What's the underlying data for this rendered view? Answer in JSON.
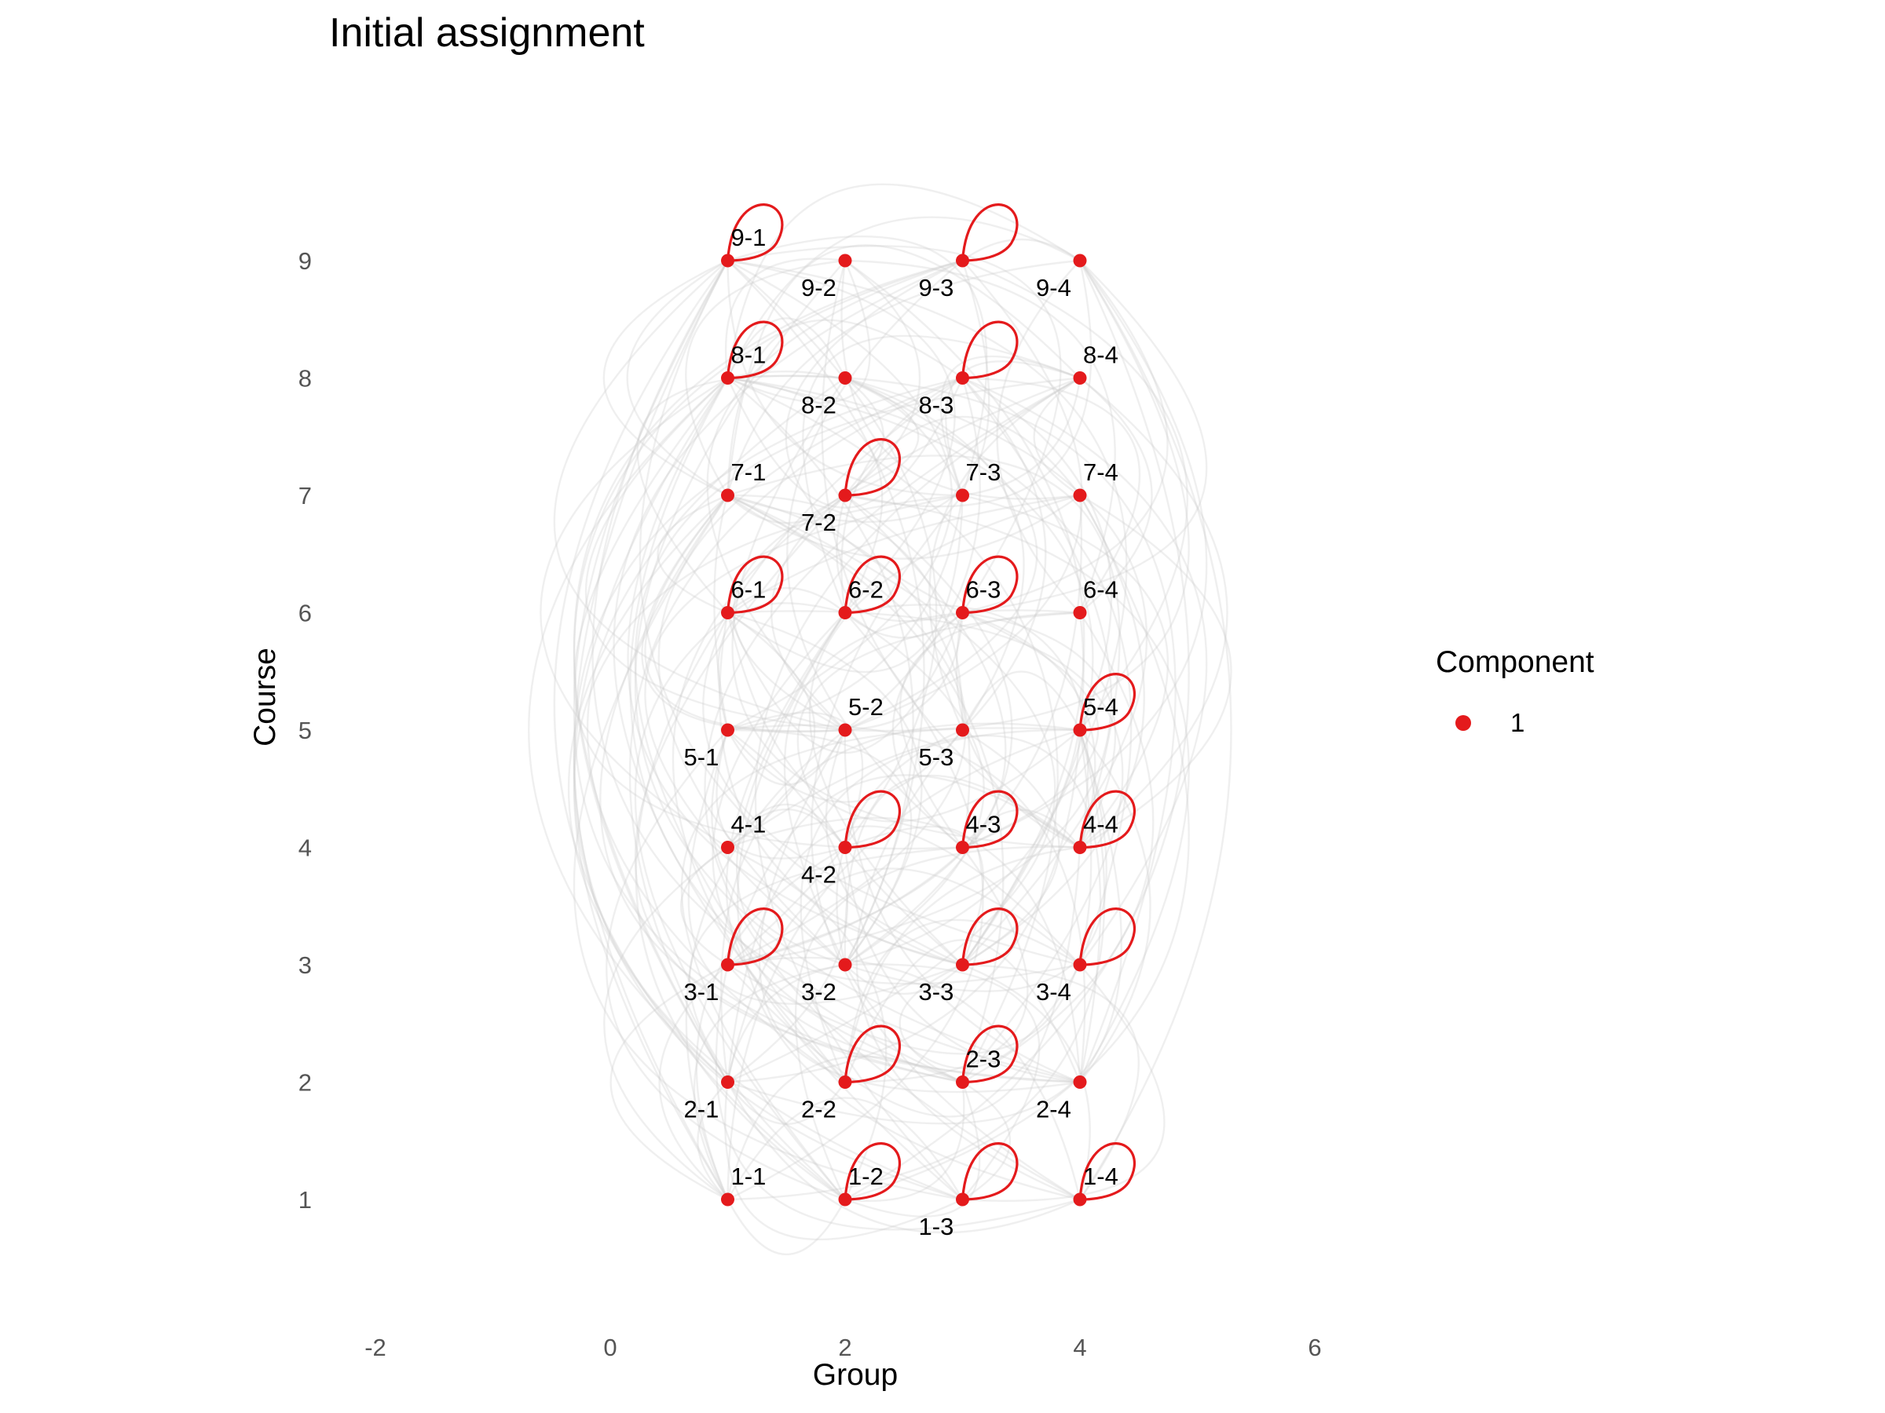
{
  "chart_data": {
    "type": "network",
    "title": "Initial assignment",
    "xlabel": "Group",
    "ylabel": "Course",
    "xlim": [
      -2,
      6
    ],
    "ylim": [
      1,
      9
    ],
    "x_ticks": [
      -2,
      0,
      2,
      4,
      6
    ],
    "y_ticks": [
      1,
      2,
      3,
      4,
      5,
      6,
      7,
      8,
      9
    ],
    "grid": false,
    "legend": {
      "title": "Component",
      "position": "right",
      "entries": [
        {
          "label": "1",
          "color": "#e41a1c"
        }
      ]
    },
    "node_color": "#e41a1c",
    "edge_color": "#cccccc",
    "nodes": [
      {
        "label": "1-1",
        "x": 1,
        "y": 1,
        "label_pos": "above",
        "self_loop": false
      },
      {
        "label": "1-2",
        "x": 2,
        "y": 1,
        "label_pos": "above",
        "self_loop": true
      },
      {
        "label": "1-3",
        "x": 3,
        "y": 1,
        "label_pos": "below",
        "self_loop": true
      },
      {
        "label": "1-4",
        "x": 4,
        "y": 1,
        "label_pos": "above",
        "self_loop": true
      },
      {
        "label": "2-1",
        "x": 1,
        "y": 2,
        "label_pos": "below",
        "self_loop": false
      },
      {
        "label": "2-2",
        "x": 2,
        "y": 2,
        "label_pos": "below",
        "self_loop": true
      },
      {
        "label": "2-3",
        "x": 3,
        "y": 2,
        "label_pos": "above",
        "self_loop": true
      },
      {
        "label": "2-4",
        "x": 4,
        "y": 2,
        "label_pos": "below",
        "self_loop": false
      },
      {
        "label": "3-1",
        "x": 1,
        "y": 3,
        "label_pos": "below",
        "self_loop": true
      },
      {
        "label": "3-2",
        "x": 2,
        "y": 3,
        "label_pos": "below",
        "self_loop": false
      },
      {
        "label": "3-3",
        "x": 3,
        "y": 3,
        "label_pos": "below",
        "self_loop": true
      },
      {
        "label": "3-4",
        "x": 4,
        "y": 3,
        "label_pos": "below",
        "self_loop": true
      },
      {
        "label": "4-1",
        "x": 1,
        "y": 4,
        "label_pos": "above",
        "self_loop": false
      },
      {
        "label": "4-2",
        "x": 2,
        "y": 4,
        "label_pos": "below",
        "self_loop": true
      },
      {
        "label": "4-3",
        "x": 3,
        "y": 4,
        "label_pos": "above",
        "self_loop": true
      },
      {
        "label": "4-4",
        "x": 4,
        "y": 4,
        "label_pos": "above",
        "self_loop": true
      },
      {
        "label": "5-1",
        "x": 1,
        "y": 5,
        "label_pos": "below",
        "self_loop": false
      },
      {
        "label": "5-2",
        "x": 2,
        "y": 5,
        "label_pos": "above",
        "self_loop": false
      },
      {
        "label": "5-3",
        "x": 3,
        "y": 5,
        "label_pos": "below",
        "self_loop": false
      },
      {
        "label": "5-4",
        "x": 4,
        "y": 5,
        "label_pos": "above",
        "self_loop": true
      },
      {
        "label": "6-1",
        "x": 1,
        "y": 6,
        "label_pos": "above",
        "self_loop": true
      },
      {
        "label": "6-2",
        "x": 2,
        "y": 6,
        "label_pos": "above",
        "self_loop": true
      },
      {
        "label": "6-3",
        "x": 3,
        "y": 6,
        "label_pos": "above",
        "self_loop": true
      },
      {
        "label": "6-4",
        "x": 4,
        "y": 6,
        "label_pos": "above",
        "self_loop": false
      },
      {
        "label": "7-1",
        "x": 1,
        "y": 7,
        "label_pos": "above",
        "self_loop": false
      },
      {
        "label": "7-2",
        "x": 2,
        "y": 7,
        "label_pos": "below",
        "self_loop": true
      },
      {
        "label": "7-3",
        "x": 3,
        "y": 7,
        "label_pos": "above",
        "self_loop": false
      },
      {
        "label": "7-4",
        "x": 4,
        "y": 7,
        "label_pos": "above",
        "self_loop": false
      },
      {
        "label": "8-1",
        "x": 1,
        "y": 8,
        "label_pos": "above",
        "self_loop": true
      },
      {
        "label": "8-2",
        "x": 2,
        "y": 8,
        "label_pos": "below",
        "self_loop": false
      },
      {
        "label": "8-3",
        "x": 3,
        "y": 8,
        "label_pos": "below",
        "self_loop": true
      },
      {
        "label": "8-4",
        "x": 4,
        "y": 8,
        "label_pos": "above",
        "self_loop": false
      },
      {
        "label": "9-1",
        "x": 1,
        "y": 9,
        "label_pos": "above",
        "self_loop": true
      },
      {
        "label": "9-2",
        "x": 2,
        "y": 9,
        "label_pos": "below",
        "self_loop": false
      },
      {
        "label": "9-3",
        "x": 3,
        "y": 9,
        "label_pos": "below",
        "self_loop": true
      },
      {
        "label": "9-4",
        "x": 4,
        "y": 9,
        "label_pos": "below",
        "self_loop": false
      }
    ]
  }
}
